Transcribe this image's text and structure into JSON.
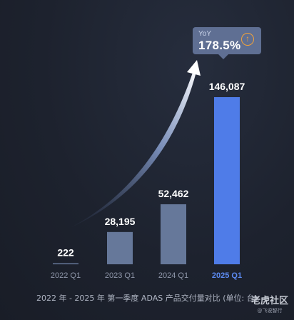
{
  "chart_data": {
    "type": "bar",
    "categories": [
      "2022 Q1",
      "2023 Q1",
      "2024 Q1",
      "2025 Q1"
    ],
    "values": [
      222,
      28195,
      52462,
      146087
    ],
    "value_labels": [
      "222",
      "28,195",
      "52,462",
      "146,087"
    ],
    "highlight_index": 3,
    "ylim": [
      0,
      146087
    ],
    "grid": false,
    "colors": {
      "bar": "#66789a",
      "highlight": "#4f7ce8",
      "label": "#ffffff",
      "tick": "#8f97aa",
      "tick_highlight": "#5b8af0"
    },
    "annotation": {
      "label": "YoY",
      "value": "178.5%",
      "icon": "arrow-up-circle-icon"
    },
    "caption": "2022 年 - 2025 年 第一季度 ADAS 产品交付量对比 (单位: 台)"
  },
  "watermark": {
    "text": "老虎社区",
    "sub": "@飞说智行"
  }
}
